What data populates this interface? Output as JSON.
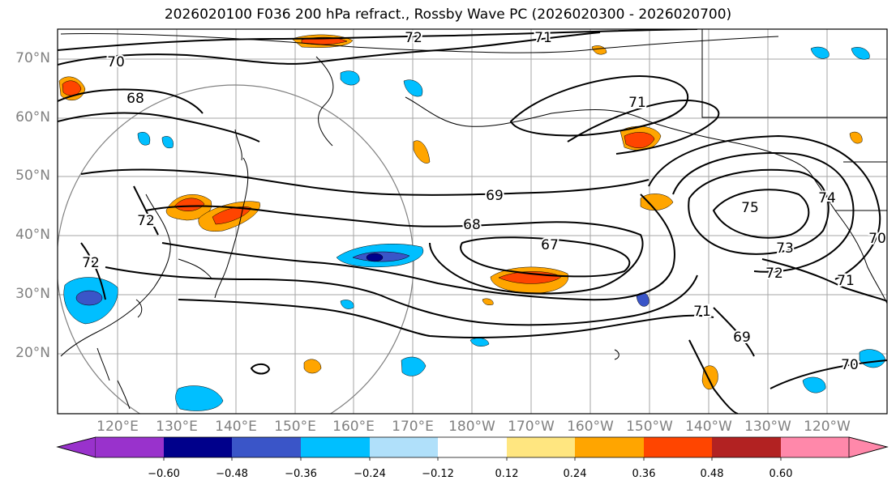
{
  "title": "2026020100 F036 200 hPa refract., Rossby Wave PC (2026020300 - 2026020700)",
  "latitude_labels": [
    "70°N",
    "60°N",
    "50°N",
    "40°N",
    "30°N",
    "20°N"
  ],
  "longitude_labels": [
    "120°E",
    "130°E",
    "140°E",
    "150°E",
    "160°E",
    "170°E",
    "180°W",
    "170°W",
    "160°W",
    "150°W",
    "140°W",
    "130°W",
    "120°W"
  ],
  "contour_labels": [
    "72",
    "71",
    "70",
    "68",
    "71",
    "69",
    "68",
    "67",
    "75",
    "74",
    "73",
    "72",
    "71",
    "70",
    "72",
    "71",
    "69",
    "70",
    "72"
  ],
  "colorbar": {
    "tick_labels": [
      "−0.60",
      "−0.48",
      "−0.36",
      "−0.24",
      "−0.12",
      "0.12",
      "0.24",
      "0.36",
      "0.48",
      "0.60"
    ],
    "colors": [
      "#9932cc",
      "#00008b",
      "#3a55c8",
      "#00bfff",
      "#b0e0fa",
      "#ffffff",
      "#ffe680",
      "#ffa500",
      "#ff4500",
      "#b22222",
      "#ff88aa"
    ]
  }
}
